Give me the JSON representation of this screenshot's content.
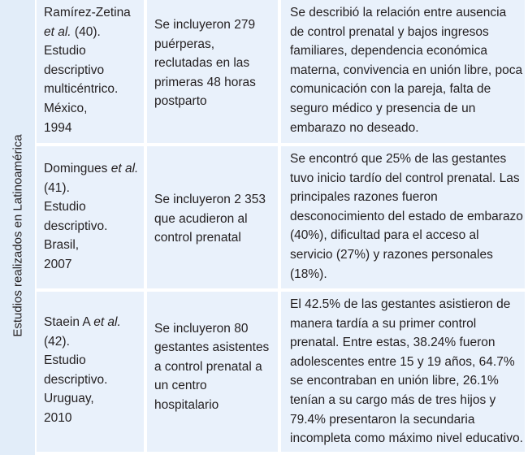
{
  "side_label": "Estudios realizados en Latinoamérica",
  "rows": [
    {
      "author": "Ramírez-Zetina",
      "etal": "et al.",
      "ref": " (40).",
      "design": "Estudio descriptivo multicéntrico.",
      "country": "México,",
      "year": "1994",
      "sample": "Se incluyeron 279 puérperas, reclutadas en las primeras 48 horas postparto",
      "findings": "Se describió la relación entre ausencia de control prenatal y bajos ingresos familiares, dependencia económica materna, convivencia en unión libre, poca comunicación con la pareja, falta de seguro médico y presencia de un embarazo no deseado."
    },
    {
      "author": "Domingues ",
      "etal": "et al.",
      "ref": " (41).",
      "design": "Estudio descriptivo.",
      "country": "Brasil,",
      "year": "2007",
      "sample": "Se incluyeron 2 353 que acudieron al control prenatal",
      "findings": "Se encontró que 25% de las gestantes tuvo inicio tardío del control prenatal. Las principales razones fueron desconocimiento del estado de embarazo (40%), dificultad para el acceso al servicio (27%) y razones personales (18%)."
    },
    {
      "author": "Staein A ",
      "etal": "et al.",
      "ref": " (42).",
      "design": "Estudio descriptivo.",
      "country": "Uruguay,",
      "year": "2010",
      "sample": "Se incluyeron 80 gestantes asistentes a control prenatal a un centro hospitalario",
      "findings": "El 42.5% de las gestantes asistieron de manera tardía a su primer control prenatal. Entre estas, 38.24% fueron adolescentes entre 15 y 19 años, 64.7% se encontraban en unión libre, 26.1% tenían a su cargo más de tres hijos y 79.4% presentaron la secundaria incompleta como máximo nivel educativo."
    }
  ]
}
